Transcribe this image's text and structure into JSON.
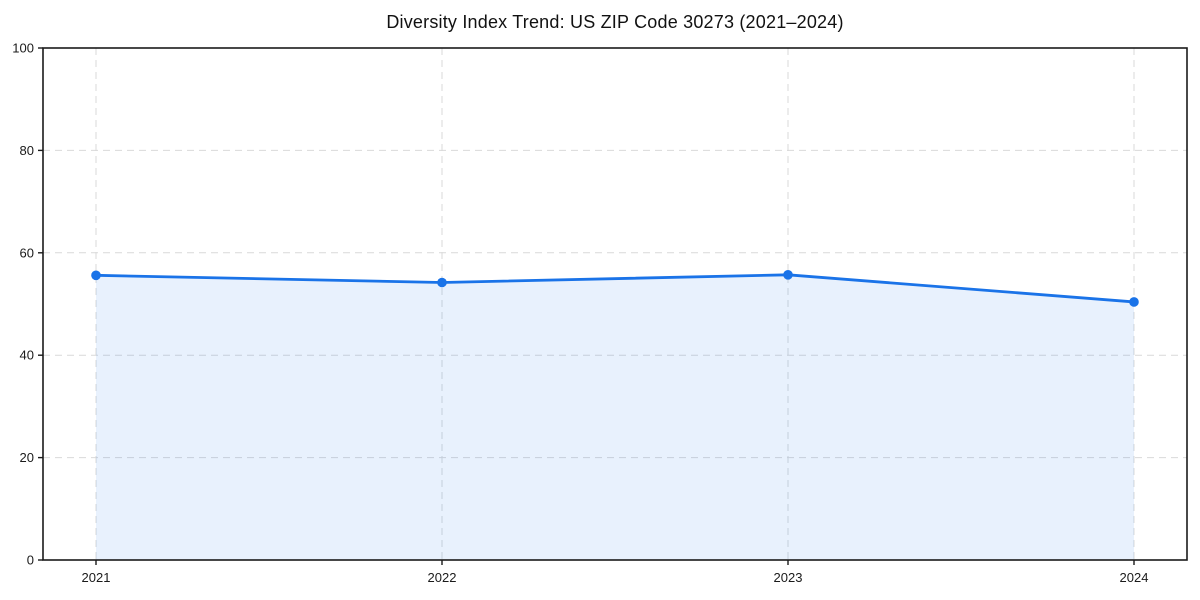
{
  "chart_data": {
    "type": "area",
    "title": "Diversity Index Trend: US ZIP Code 30273 (2021–2024)",
    "x": [
      2021,
      2022,
      2023,
      2024
    ],
    "xtick_labels": [
      "2021",
      "2022",
      "2023",
      "2024"
    ],
    "series": [
      {
        "name": "Diversity Index",
        "values": [
          55.6,
          54.2,
          55.7,
          50.4
        ]
      }
    ],
    "xlabel": "",
    "ylabel": "",
    "ylim": [
      0,
      100
    ],
    "yticks": [
      0,
      20,
      40,
      60,
      80,
      100
    ],
    "grid": true,
    "grid_style": "dashed",
    "legend_position": "none",
    "line_color": "#1a73e8",
    "marker": "circle",
    "fill_color": "#1a73e8",
    "fill_opacity": 0.1,
    "grid_color": "#d9d9d9",
    "spine_color": "#1a1a1a",
    "tick_label_color": "#1a1a1a",
    "background": "#ffffff"
  }
}
